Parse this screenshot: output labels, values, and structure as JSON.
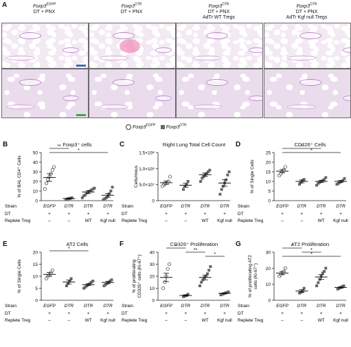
{
  "panel_A": {
    "label": "A",
    "columns": [
      {
        "genotype": "Foxp3",
        "sup": "EGFP",
        "treatment": "DT + PNX",
        "treatment2": ""
      },
      {
        "genotype": "Foxp3",
        "sup": "DTR",
        "treatment": "DT + PNX",
        "treatment2": ""
      },
      {
        "genotype": "Foxp3",
        "sup": "DTR",
        "treatment": "DT + PNX",
        "treatment2": "AdTr WT Tregs"
      },
      {
        "genotype": "Foxp3",
        "sup": "DTR",
        "treatment": "DT + PNX",
        "treatment2": "AdTr Kgf null Tregs"
      }
    ],
    "scalebar_colors": {
      "top": "#3a6fb5",
      "bottom": "#3aa845"
    }
  },
  "legend": {
    "egfp_label": "Foxp3",
    "egfp_sup": "EGFP",
    "dtr_label": "Foxp3",
    "dtr_sup": "DTR"
  },
  "table_rows": {
    "strain": "Strain",
    "dt": "DT",
    "replete": "Replete Treg",
    "strain_vals": [
      "EGFP",
      "DTR",
      "DTR",
      "DTR"
    ],
    "dt_vals": [
      "+",
      "+",
      "+",
      "+"
    ],
    "replete_vals": [
      "–",
      "–",
      "WT",
      "Kgf null"
    ]
  },
  "chart_data": [
    {
      "panel": "B",
      "type": "scatter",
      "title": "Foxp3⁺ cells",
      "ylabel": "% of BAL CD4⁺ Cells",
      "ylim": [
        0,
        50
      ],
      "yticks": [
        "0",
        "10",
        "20",
        "30",
        "40",
        "50"
      ],
      "groups": [
        {
          "values": [
            12,
            18,
            22,
            25,
            28,
            32,
            35
          ],
          "mean": 24,
          "sem": 4,
          "filled": false
        },
        {
          "values": [
            1,
            1.5,
            2,
            2.5,
            3
          ],
          "mean": 2.2,
          "sem": 0.6,
          "filled": true
        },
        {
          "values": [
            3,
            5,
            6,
            8,
            9,
            10,
            11,
            12,
            13
          ],
          "mean": 9,
          "sem": 1.5,
          "filled": true
        },
        {
          "values": [
            1,
            2,
            3,
            5,
            7,
            10,
            14
          ],
          "mean": 5.5,
          "sem": 2,
          "filled": true
        }
      ],
      "sig": [
        {
          "from": 0,
          "to": 1,
          "label": "**"
        },
        {
          "from": 0,
          "to": 3,
          "label": "*"
        }
      ]
    },
    {
      "panel": "C",
      "type": "scatter",
      "title": "Right Lung Total Cell Count",
      "ylabel": "Cells/mous",
      "ylim": [
        0,
        15
      ],
      "yticks": [
        "0",
        "5.0×10⁷",
        "1.0×10⁸",
        "1.5×10⁸"
      ],
      "groups": [
        {
          "values": [
            4.5,
            5,
            5.3,
            5.6,
            6,
            7.5
          ],
          "mean": 5.6,
          "sem": 0.5,
          "filled": false
        },
        {
          "values": [
            3.5,
            4.5,
            5,
            6
          ],
          "mean": 4.8,
          "sem": 0.6,
          "filled": true
        },
        {
          "values": [
            6,
            7,
            7.5,
            8,
            8.5,
            9,
            9.5
          ],
          "mean": 8.1,
          "sem": 0.5,
          "filled": true
        },
        {
          "values": [
            2,
            3.5,
            4.5,
            5.5,
            6.5,
            8,
            9
          ],
          "mean": 5.5,
          "sem": 1,
          "filled": true
        }
      ],
      "sig": []
    },
    {
      "panel": "D",
      "type": "scatter",
      "title": "CD326⁺ Cells",
      "ylabel": "% of Single Cells",
      "ylim": [
        0,
        25
      ],
      "yticks": [
        "0",
        "5",
        "10",
        "15",
        "20",
        "25"
      ],
      "groups": [
        {
          "values": [
            13,
            14,
            15,
            16,
            17.5
          ],
          "mean": 15.3,
          "sem": 0.8,
          "filled": false
        },
        {
          "values": [
            8.5,
            9.5,
            10.5,
            11
          ],
          "mean": 10,
          "sem": 0.7,
          "filled": true
        },
        {
          "values": [
            8,
            9,
            9.5,
            10,
            10.5,
            11,
            12
          ],
          "mean": 10,
          "sem": 0.5,
          "filled": true
        },
        {
          "values": [
            8.5,
            9,
            9.5,
            10,
            10.5,
            11.5
          ],
          "mean": 10,
          "sem": 0.5,
          "filled": true
        }
      ],
      "sig": [
        {
          "from": 0,
          "to": 2,
          "label": "*"
        },
        {
          "from": 0,
          "to": 3,
          "label": "*"
        }
      ]
    },
    {
      "panel": "E",
      "type": "scatter",
      "title": "AT2 Cells",
      "ylabel": "% of Single Cells",
      "ylim": [
        0,
        20
      ],
      "yticks": [
        "0",
        "5",
        "10",
        "15",
        "20"
      ],
      "groups": [
        {
          "values": [
            9,
            10,
            10.5,
            11.5,
            12.5
          ],
          "mean": 10.8,
          "sem": 0.8,
          "filled": false
        },
        {
          "values": [
            6,
            7,
            8,
            9
          ],
          "mean": 7.6,
          "sem": 0.8,
          "filled": true
        },
        {
          "values": [
            5,
            5.5,
            6,
            6.5,
            7,
            7.5,
            8
          ],
          "mean": 6.5,
          "sem": 0.4,
          "filled": true
        },
        {
          "values": [
            6,
            6.5,
            7,
            7.5,
            8,
            8.5
          ],
          "mean": 7.4,
          "sem": 0.5,
          "filled": true
        }
      ],
      "sig": [
        {
          "from": 0,
          "to": 2,
          "label": "*"
        }
      ]
    },
    {
      "panel": "F",
      "type": "scatter",
      "title": "CD326⁺ Proliferation",
      "ylabel": "% of proliferating CD326⁺ cells (Ki-67⁺)",
      "ylim": [
        0,
        40
      ],
      "yticks": [
        "0",
        "10",
        "20",
        "30",
        "40"
      ],
      "groups": [
        {
          "values": [
            10,
            15,
            20,
            26,
            30
          ],
          "mean": 19,
          "sem": 3.5,
          "filled": false
        },
        {
          "values": [
            3,
            3.5,
            4,
            5
          ],
          "mean": 4,
          "sem": 0.5,
          "filled": true
        },
        {
          "values": [
            12,
            15,
            17,
            19,
            20,
            22,
            25,
            28
          ],
          "mean": 19,
          "sem": 2,
          "filled": true
        },
        {
          "values": [
            4.5,
            5,
            5.5,
            6,
            6.5,
            7
          ],
          "mean": 5.8,
          "sem": 0.4,
          "filled": true
        }
      ],
      "sig": [
        {
          "from": 0,
          "to": 1,
          "label": "*"
        },
        {
          "from": 1,
          "to": 2,
          "label": "**"
        },
        {
          "from": 2,
          "to": 3,
          "label": "*"
        }
      ]
    },
    {
      "panel": "G",
      "type": "scatter",
      "title": "AT2 Proliferation",
      "ylabel": "% of proliferating AT2 cells (Ki-67⁺)",
      "ylim": [
        0,
        30
      ],
      "yticks": [
        "0",
        "10",
        "20",
        "30"
      ],
      "groups": [
        {
          "values": [
            15,
            16,
            17,
            18,
            20
          ],
          "mean": 17,
          "sem": 1,
          "filled": false
        },
        {
          "values": [
            4.5,
            5,
            5.5,
            7.5
          ],
          "mean": 5.8,
          "sem": 0.8,
          "filled": true
        },
        {
          "values": [
            9,
            11,
            13,
            15,
            17,
            18,
            20
          ],
          "mean": 14.5,
          "sem": 1.5,
          "filled": true
        },
        {
          "values": [
            7,
            7.5,
            8,
            8.5,
            9
          ],
          "mean": 8,
          "sem": 0.4,
          "filled": true
        }
      ],
      "sig": [
        {
          "from": 0,
          "to": 1,
          "label": "*"
        },
        {
          "from": 1,
          "to": 2,
          "label": "*"
        },
        {
          "from": 0,
          "to": 3,
          "label": "*"
        }
      ]
    }
  ]
}
